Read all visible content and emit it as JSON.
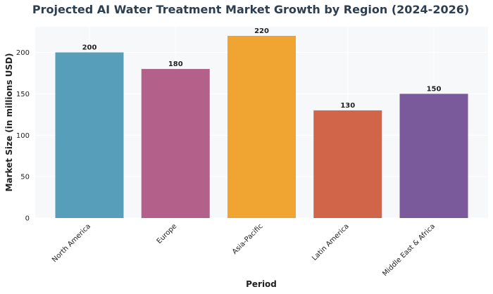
{
  "chart_data": {
    "type": "bar",
    "title": "Projected AI Water Treatment Market Growth by Region (2024-2026)",
    "xlabel": "Period",
    "ylabel": "Market Size (in millions USD)",
    "categories": [
      "North America",
      "Europe",
      "Asia-Pacific",
      "Latin America",
      "Middle East & Africa"
    ],
    "values": [
      200,
      180,
      220,
      130,
      150
    ],
    "colors": [
      "#579ebb",
      "#b3618b",
      "#f0a432",
      "#d1654a",
      "#7b5a9b"
    ],
    "ylim": [
      0,
      231
    ],
    "yticks": [
      0,
      50,
      100,
      150,
      200
    ],
    "grid": true,
    "background": "#f7f8fa"
  }
}
